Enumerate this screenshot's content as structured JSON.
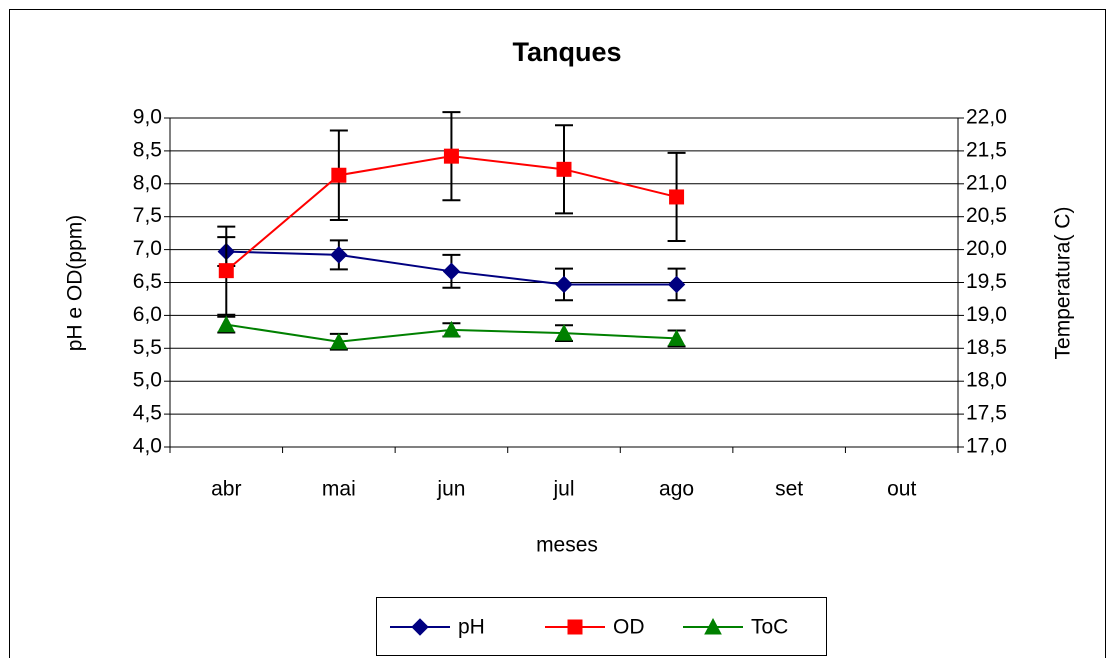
{
  "chart_data": {
    "type": "line",
    "title": "Tanques",
    "x_label": "meses",
    "y_label": "pH e OD(ppm)",
    "y2_label": "Temperatura( C)",
    "categories": [
      "abr",
      "mai",
      "jun",
      "jul",
      "ago",
      "set",
      "out"
    ],
    "series": [
      {
        "name": "pH",
        "color": "#000080",
        "marker": "diamond",
        "values": [
          6.97,
          6.92,
          6.67,
          6.47,
          6.47,
          null,
          null
        ],
        "errors": [
          0.22,
          0.22,
          0.25,
          0.24,
          0.24,
          null,
          null
        ]
      },
      {
        "name": "OD",
        "color": "#ff0000",
        "marker": "square",
        "values": [
          6.68,
          8.13,
          8.42,
          8.22,
          7.8,
          null,
          null
        ],
        "errors": [
          0.67,
          0.68,
          0.67,
          0.67,
          0.67,
          null,
          null
        ]
      },
      {
        "name": "ToC",
        "color": "#008000",
        "marker": "triangle",
        "axis": "y2",
        "values": [
          18.86,
          18.6,
          18.78,
          18.73,
          18.65,
          null,
          null
        ],
        "errors": [
          0.12,
          0.12,
          0.1,
          0.12,
          0.12,
          null,
          null
        ]
      }
    ],
    "ylim": [
      4,
      9
    ],
    "yticks": [
      {
        "value": 4,
        "label": "4,0"
      },
      {
        "value": 4.5,
        "label": "4,5"
      },
      {
        "value": 5,
        "label": "5,0"
      },
      {
        "value": 5.5,
        "label": "5,5"
      },
      {
        "value": 6,
        "label": "6,0"
      },
      {
        "value": 6.5,
        "label": "6,5"
      },
      {
        "value": 7,
        "label": "7,0"
      },
      {
        "value": 7.5,
        "label": "7,5"
      },
      {
        "value": 8,
        "label": "8,0"
      },
      {
        "value": 8.5,
        "label": "8,5"
      },
      {
        "value": 9,
        "label": "9,0"
      }
    ],
    "y2lim": [
      17,
      22
    ],
    "y2ticks": [
      {
        "value": 17,
        "label": "17,0"
      },
      {
        "value": 17.5,
        "label": "17,5"
      },
      {
        "value": 18,
        "label": "18,0"
      },
      {
        "value": 18.5,
        "label": "18,5"
      },
      {
        "value": 19,
        "label": "19,0"
      },
      {
        "value": 19.5,
        "label": "19,5"
      },
      {
        "value": 20,
        "label": "20,0"
      },
      {
        "value": 20.5,
        "label": "20,5"
      },
      {
        "value": 21,
        "label": "21,0"
      },
      {
        "value": 21.5,
        "label": "21,5"
      },
      {
        "value": 22,
        "label": "22,0"
      }
    ],
    "grid": true,
    "legend": "bottom"
  }
}
